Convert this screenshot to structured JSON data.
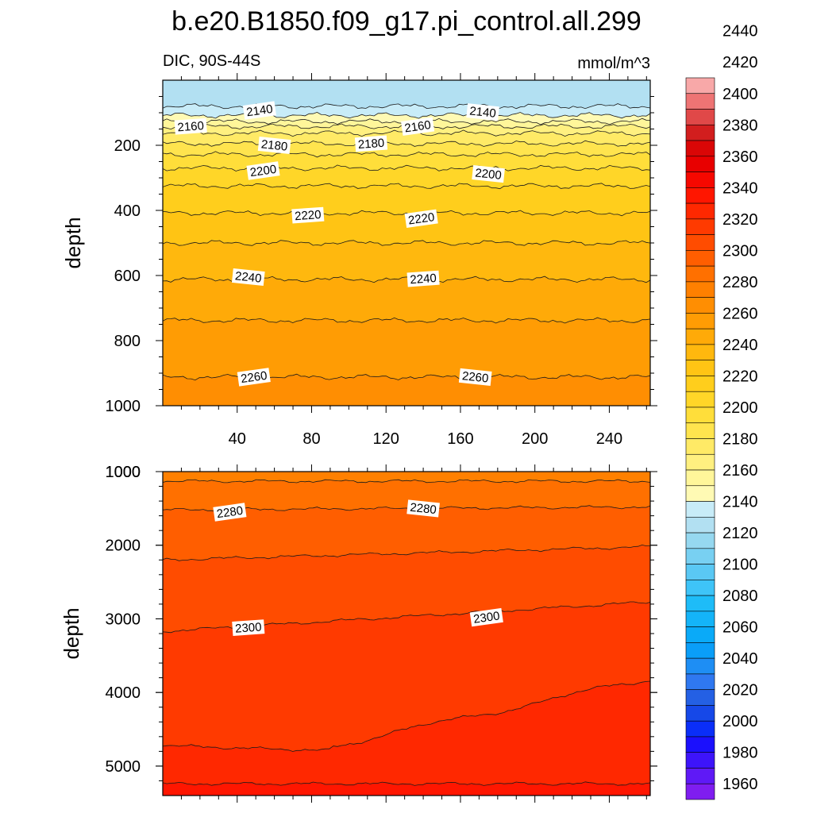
{
  "title": "b.e20.B1850.f09_g17.pi_control.all.299",
  "colors": {
    "frame": "#000000",
    "contour_line": "#1a1a1a",
    "label_bg": "#ffffff"
  },
  "chart_data": [
    {
      "type": "contour",
      "panel": "upper",
      "left_string": "DIC, 90S-44S",
      "right_string": "mmol/m^3",
      "xlabel": "",
      "ylabel": "depth",
      "xlim": [
        0,
        262
      ],
      "ylim": [
        0,
        1000
      ],
      "y_inverted": true,
      "x_ticks": [
        40,
        80,
        120,
        160,
        200,
        240
      ],
      "y_ticks": [
        200,
        400,
        600,
        800,
        1000
      ],
      "x_tick_labels_visible": true,
      "contour_levels": [
        {
          "level": 2130,
          "depth": 80
        },
        {
          "level": 2140,
          "depth": 108,
          "labeled": true
        },
        {
          "level": 2150,
          "depth": 127
        },
        {
          "level": 2160,
          "depth": 142,
          "labeled": true
        },
        {
          "level": 2170,
          "depth": 163
        },
        {
          "level": 2180,
          "depth": 195,
          "labeled": true
        },
        {
          "level": 2190,
          "depth": 228
        },
        {
          "level": 2200,
          "depth": 270,
          "labeled": true
        },
        {
          "level": 2210,
          "depth": 325
        },
        {
          "level": 2220,
          "depth": 408,
          "labeled": true
        },
        {
          "level": 2230,
          "depth": 500
        },
        {
          "level": 2240,
          "depth": 612,
          "labeled": true
        },
        {
          "level": 2250,
          "depth": 738
        },
        {
          "level": 2260,
          "depth": 912,
          "labeled": true
        }
      ],
      "contour_labels": [
        {
          "text": "2140",
          "x": 52,
          "depth": 93
        },
        {
          "text": "2140",
          "x": 172,
          "depth": 98
        },
        {
          "text": "2160",
          "x": 15,
          "depth": 142
        },
        {
          "text": "2160",
          "x": 137,
          "depth": 142
        },
        {
          "text": "2180",
          "x": 60,
          "depth": 200
        },
        {
          "text": "2180",
          "x": 112,
          "depth": 195
        },
        {
          "text": "2200",
          "x": 54,
          "depth": 278
        },
        {
          "text": "2200",
          "x": 175,
          "depth": 288
        },
        {
          "text": "2220",
          "x": 78,
          "depth": 415
        },
        {
          "text": "2220",
          "x": 139,
          "depth": 425
        },
        {
          "text": "2240",
          "x": 46,
          "depth": 605
        },
        {
          "text": "2240",
          "x": 140,
          "depth": 610
        },
        {
          "text": "2260",
          "x": 49,
          "depth": 912
        },
        {
          "text": "2260",
          "x": 168,
          "depth": 912
        }
      ]
    },
    {
      "type": "contour",
      "panel": "lower",
      "left_string": "",
      "right_string": "",
      "xlabel": "",
      "ylabel": "depth",
      "xlim": [
        0,
        262
      ],
      "ylim": [
        1000,
        5400
      ],
      "y_inverted": true,
      "x_ticks": [
        40,
        80,
        120,
        160,
        200,
        240
      ],
      "y_ticks": [
        1000,
        2000,
        3000,
        4000,
        5000
      ],
      "x_tick_labels_visible": false,
      "contour_levels": [
        {
          "level": 2270,
          "depth": 1130
        },
        {
          "level": 2280,
          "depth": 1520,
          "labeled": true
        },
        {
          "level": 2290,
          "depth": 2200
        },
        {
          "level": 2300,
          "depth": 3050,
          "labeled": true
        },
        {
          "level": 2310,
          "depth": 4500
        },
        {
          "level": 2320,
          "depth": 5240
        }
      ],
      "contour_labels": [
        {
          "text": "2280",
          "x": 36,
          "depth": 1550
        },
        {
          "text": "2280",
          "x": 140,
          "depth": 1500
        },
        {
          "text": "2300",
          "x": 46,
          "depth": 3120
        },
        {
          "text": "2300",
          "x": 174,
          "depth": 2980
        }
      ]
    }
  ],
  "colorbar": {
    "labels": [
      "1960",
      "1980",
      "2000",
      "2020",
      "2040",
      "2060",
      "2080",
      "2100",
      "2120",
      "2140",
      "2160",
      "2180",
      "2200",
      "2220",
      "2240",
      "2260",
      "2280",
      "2300",
      "2320",
      "2340",
      "2360",
      "2380",
      "2400",
      "2420",
      "2440"
    ],
    "fill_colors": [
      "#7f1df0",
      "#5f19f6",
      "#3d14fa",
      "#1b10fd",
      "#0a2ef8",
      "#1648e8",
      "#2460e4",
      "#2f78f0",
      "#1e8ef4",
      "#0a9ef8",
      "#0aaaf8",
      "#14b4f8",
      "#1ebcf8",
      "#3ec4f8",
      "#5ac8f4",
      "#78d0f2",
      "#96d8f0",
      "#b2e0f2",
      "#c8ecf8",
      "#fffab4",
      "#fff69a",
      "#fff080",
      "#ffea66",
      "#ffe44e",
      "#ffde3a",
      "#ffd628",
      "#ffce1c",
      "#ffc414",
      "#ffb80e",
      "#ffaa08",
      "#ff9c04",
      "#ff8e02",
      "#ff8000",
      "#ff7000",
      "#ff5e00",
      "#ff4c00",
      "#ff3a00",
      "#ff2800",
      "#ff1600",
      "#f60800",
      "#e80000",
      "#da0606",
      "#d21e1e",
      "#e04848",
      "#ee7474",
      "#f8a8a8"
    ]
  }
}
